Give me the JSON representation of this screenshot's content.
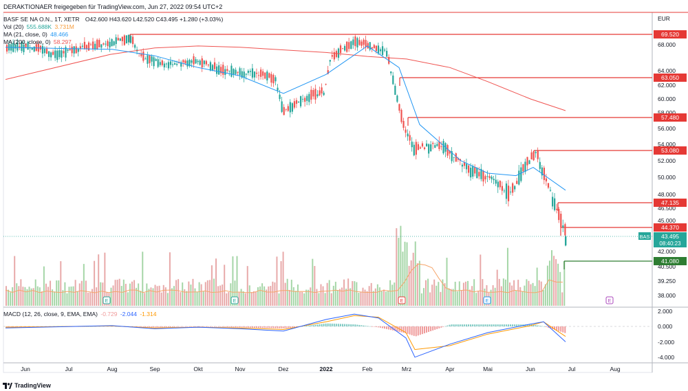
{
  "header": {
    "published": "DERAKTIONAER freigegeben für TradingView.com, Jun 27, 2022 09:54 UTC+2",
    "symbol": "BASF SE NA O.N., 1T, XETR",
    "ohlc": "O42.600  H43.620  L42.520  C43.495  +1.280 (+3.03%)"
  },
  "legend": {
    "vol_label": "Vol (20)",
    "vol_value_1": "555.688K",
    "vol_value_2": "3.731M",
    "ma21_label": "MA (21, close, 0)",
    "ma21_value": "48.466",
    "ma200_label": "MA (200, close, 0)",
    "ma200_value": "58.297",
    "macd_label": "MACD (12, 26, close, 9, EMA, EMA)",
    "macd_hist": "-0.729",
    "macd_line": "-2.044",
    "macd_signal": "-1.314"
  },
  "branding": {
    "text": "TradingView"
  },
  "colors": {
    "up": "#26a69a",
    "down": "#ef5350",
    "ma21": "#2196f3",
    "ma200": "#ef5350",
    "hline_red": "#e53935",
    "hline_green": "#2e7d32",
    "macd_line": "#2962ff",
    "signal_line": "#ff9800",
    "current_price": "#26a69a"
  },
  "chart_data": {
    "type": "candlestick",
    "currency": "EUR",
    "x_labels": [
      "Jun",
      "Jul",
      "Aug",
      "Sep",
      "Okt",
      "Nov",
      "Dez",
      "2022",
      "Feb",
      "Mrz",
      "Apr",
      "Mai",
      "Jun",
      "Jul",
      "Aug"
    ],
    "y_ticks": [
      "68.000",
      "64.000",
      "62.000",
      "60.000",
      "58.000",
      "56.000",
      "54.000",
      "52.000",
      "50.000",
      "48.000",
      "46.500",
      "45.000",
      "42.000",
      "40.500",
      "39.250",
      "38.000"
    ],
    "horizontal_levels": [
      {
        "value": "69.520",
        "color": "red"
      },
      {
        "value": "63.050",
        "color": "red"
      },
      {
        "value": "57.480",
        "color": "red"
      },
      {
        "value": "53.080",
        "color": "red"
      },
      {
        "value": "47.135",
        "color": "red"
      },
      {
        "value": "44.370",
        "color": "red"
      },
      {
        "value": "41.080",
        "color": "green"
      }
    ],
    "current_price": {
      "symbol": "BAS",
      "value": "43.495",
      "countdown": "08:40:23"
    },
    "close_path": [
      [
        "Jun",
        67.5
      ],
      [
        "Jul",
        67.8
      ],
      [
        "Jul",
        66.5
      ],
      [
        "Aug",
        67.6
      ],
      [
        "Aug",
        68.9
      ],
      [
        "Sep",
        66.2
      ],
      [
        "Sep",
        65.0
      ],
      [
        "Okt",
        65.5
      ],
      [
        "Okt",
        64.2
      ],
      [
        "Nov",
        63.5
      ],
      [
        "Nov",
        62.8
      ],
      [
        "Dez",
        58.2
      ],
      [
        "Dez",
        60.5
      ],
      [
        "2022",
        61.0
      ],
      [
        "2022",
        66.0
      ],
      [
        "Feb",
        68.5
      ],
      [
        "Feb",
        67.0
      ],
      [
        "Mrz",
        56.5
      ],
      [
        "Mrz",
        53.5
      ],
      [
        "Apr",
        54.0
      ],
      [
        "Apr",
        51.0
      ],
      [
        "Mai",
        49.5
      ],
      [
        "Mai",
        48.0
      ],
      [
        "Jun",
        51.0
      ],
      [
        "Jun",
        53.0
      ],
      [
        "Jun",
        48.0
      ],
      [
        "Jul",
        43.5
      ]
    ],
    "ma200_path": [
      [
        "Jun",
        62.8
      ],
      [
        "Aug",
        66.5
      ],
      [
        "Sep",
        67.5
      ],
      [
        "Okt",
        67.8
      ],
      [
        "Nov",
        67.6
      ],
      [
        "Dez",
        67.2
      ],
      [
        "2022",
        66.8
      ],
      [
        "Feb",
        66.2
      ],
      [
        "Mrz",
        65.8
      ],
      [
        "Apr",
        64.5
      ],
      [
        "Mai",
        62.5
      ],
      [
        "Jun",
        60.0
      ],
      [
        "Jul",
        58.3
      ]
    ],
    "ma21_path": [
      [
        "Jun",
        67.6
      ],
      [
        "Jul",
        67.4
      ],
      [
        "Aug",
        67.3
      ],
      [
        "Sep",
        66.3
      ],
      [
        "Okt",
        64.5
      ],
      [
        "Nov",
        63.3
      ],
      [
        "Dez",
        60.8
      ],
      [
        "2022",
        63.5
      ],
      [
        "Feb",
        67.8
      ],
      [
        "Mrz",
        64.5
      ],
      [
        "Mrz",
        56.5
      ],
      [
        "Apr",
        54.2
      ],
      [
        "Apr",
        52.0
      ],
      [
        "Mai",
        50.5
      ],
      [
        "Jun",
        50.2
      ],
      [
        "Jun",
        51.2
      ],
      [
        "Jul",
        48.5
      ]
    ],
    "macd_y_ticks": [
      "2.000",
      "0.000",
      "-2.000",
      "-4.000"
    ],
    "macd_line_path": [
      [
        "Jun",
        -0.2
      ],
      [
        "Aug",
        0.1
      ],
      [
        "Sep",
        -0.3
      ],
      [
        "Okt",
        -0.1
      ],
      [
        "Nov",
        -0.3
      ],
      [
        "Dez",
        -0.6
      ],
      [
        "2022",
        0.9
      ],
      [
        "Feb",
        1.6
      ],
      [
        "Feb",
        1.1
      ],
      [
        "Mrz",
        -1.5
      ],
      [
        "Mrz",
        -4.0
      ],
      [
        "Apr",
        -2.3
      ],
      [
        "Mai",
        -0.8
      ],
      [
        "Jun",
        0.3
      ],
      [
        "Jun",
        0.6
      ],
      [
        "Jul",
        -2.0
      ]
    ],
    "signal_line_path": [
      [
        "Jun",
        -0.1
      ],
      [
        "Aug",
        0.05
      ],
      [
        "Sep",
        -0.2
      ],
      [
        "Okt",
        -0.1
      ],
      [
        "Nov",
        -0.2
      ],
      [
        "Dez",
        -0.4
      ],
      [
        "2022",
        0.6
      ],
      [
        "Feb",
        1.4
      ],
      [
        "Feb",
        1.2
      ],
      [
        "Mrz",
        -0.8
      ],
      [
        "Mrz",
        -3.0
      ],
      [
        "Apr",
        -2.5
      ],
      [
        "Mai",
        -1.0
      ],
      [
        "Jun",
        0.1
      ],
      [
        "Jun",
        0.6
      ],
      [
        "Jul",
        -1.3
      ]
    ]
  }
}
